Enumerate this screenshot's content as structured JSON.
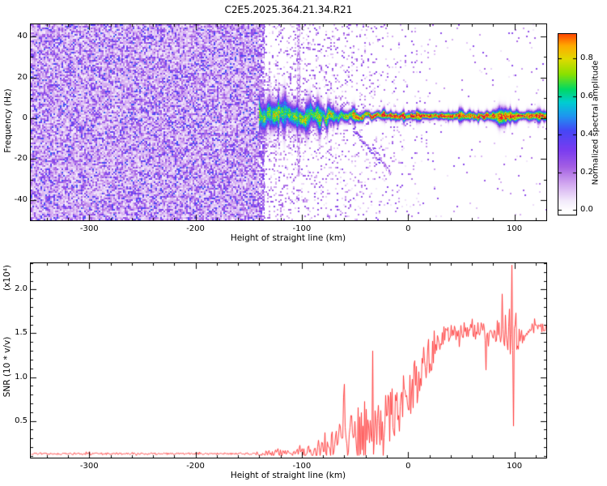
{
  "title": "C2E5.2025.364.21.34.R21",
  "chart_data": [
    {
      "type": "heatmap",
      "xlabel": "Height of straight line (km)",
      "ylabel": "Frequency (Hz)",
      "xlim": [
        -355,
        130
      ],
      "ylim": [
        -50,
        46
      ],
      "xticks": [
        "-300",
        "-200",
        "-100",
        "0",
        "100"
      ],
      "yticks": [
        "-40",
        "-20",
        "0",
        "20",
        "40"
      ],
      "x_minor_step": 20,
      "y_minor_step": 10,
      "content_summary": "Dense purple noise speckle for heights below -140 km; narrowband signal near 0 Hz from -140 km to right edge with red core and green/blue halo; halo widens near +88 km; faint diagonal echo trace descending from about (-52,-6) to (-16,-28).",
      "noise_xmax": -140,
      "signal": {
        "center_hz": 1.0,
        "start_x": -141,
        "amp_core": 0.97,
        "widen_x": 88
      },
      "vertical_streaks": [
        {
          "x": -138,
          "w": 6,
          "amp": 0.3,
          "y0": -50
        },
        {
          "x": -103,
          "w": 3,
          "amp": 0.2,
          "y0": -28
        }
      ],
      "diagonals": [
        {
          "x1": -52,
          "y1": -5,
          "x2": -26,
          "y2": -22,
          "amp": 0.3
        },
        {
          "x1": -34,
          "y1": -13,
          "x2": -16,
          "y2": -28,
          "amp": 0.25
        }
      ],
      "colorbar": {
        "label": "Normalized spectral amplitude",
        "ticks": [
          "0.0",
          "0.2",
          "0.4",
          "0.6",
          "0.8"
        ],
        "range": [
          -0.02,
          0.93
        ]
      },
      "colormap": [
        [
          0.0,
          "#ffffff"
        ],
        [
          0.05,
          "#f3eafb"
        ],
        [
          0.14,
          "#d2a8f0"
        ],
        [
          0.23,
          "#a35fe3"
        ],
        [
          0.32,
          "#7a3cf0"
        ],
        [
          0.42,
          "#4646f5"
        ],
        [
          0.5,
          "#1e96f0"
        ],
        [
          0.57,
          "#00cdd2"
        ],
        [
          0.64,
          "#00d964"
        ],
        [
          0.72,
          "#8ae000"
        ],
        [
          0.8,
          "#e0da00"
        ],
        [
          0.87,
          "#ffaa00"
        ],
        [
          0.93,
          "#ff4b00"
        ],
        [
          1.0,
          "#e00049"
        ]
      ]
    },
    {
      "type": "line",
      "series_color": "#ff3333",
      "xlabel": "Height of straight line (km)",
      "ylabel": "SNR (10 * v/v)",
      "scale_label": "(x10⁴)",
      "xlim": [
        -355,
        130
      ],
      "ylim": [
        0.08,
        2.3
      ],
      "xticks": [
        "-300",
        "-200",
        "-100",
        "0",
        "100"
      ],
      "yticks": [
        "0.5",
        "1.0",
        "1.5",
        "2.0"
      ],
      "x_minor_step": 20,
      "y_minor_step": 0.1,
      "envelope": [
        [
          -355,
          0.125,
          0.012
        ],
        [
          -150,
          0.125,
          0.012
        ],
        [
          -133,
          0.13,
          0.028
        ],
        [
          -122,
          0.135,
          0.05
        ],
        [
          -108,
          0.14,
          0.04
        ],
        [
          -92,
          0.16,
          0.07
        ],
        [
          -80,
          0.19,
          0.12
        ],
        [
          -70,
          0.23,
          0.2
        ],
        [
          -60,
          0.3,
          0.28
        ],
        [
          -50,
          0.33,
          0.3
        ],
        [
          -40,
          0.44,
          0.4
        ],
        [
          -30,
          0.4,
          0.33
        ],
        [
          -20,
          0.48,
          0.34
        ],
        [
          -10,
          0.62,
          0.33
        ],
        [
          0,
          0.82,
          0.3
        ],
        [
          10,
          1.0,
          0.28
        ],
        [
          20,
          1.25,
          0.24
        ],
        [
          30,
          1.45,
          0.16
        ],
        [
          42,
          1.52,
          0.1
        ],
        [
          60,
          1.55,
          0.1
        ],
        [
          75,
          1.48,
          0.13
        ],
        [
          88,
          1.52,
          0.15
        ],
        [
          96,
          1.55,
          0.3
        ],
        [
          103,
          1.5,
          0.22
        ],
        [
          112,
          1.55,
          0.07
        ],
        [
          130,
          1.57,
          0.05
        ]
      ],
      "spikes": [
        [
          -60,
          0.92
        ],
        [
          -34,
          1.3
        ],
        [
          73,
          1.08
        ],
        [
          88,
          1.95
        ],
        [
          97,
          2.28
        ],
        [
          99,
          0.44
        ]
      ]
    }
  ]
}
